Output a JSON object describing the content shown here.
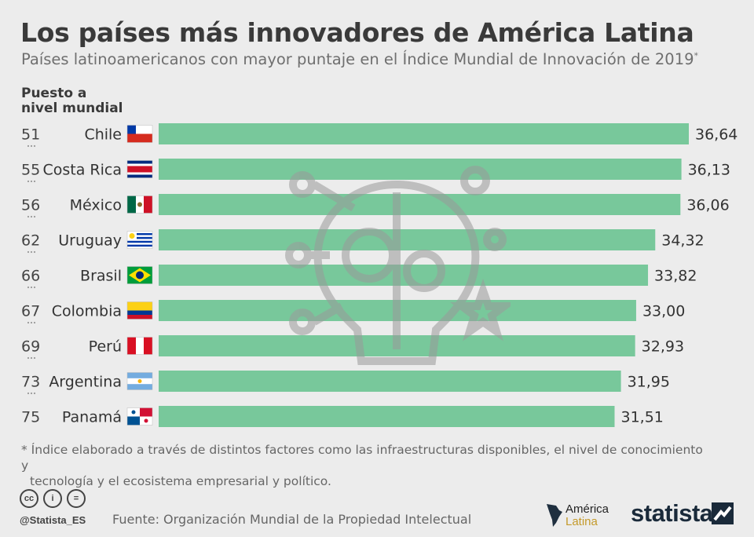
{
  "header": {
    "title": "Los países más innovadores de América Latina",
    "subtitle": "Países latinoamericanos con mayor puntaje en el Índice Mundial de Innovación de 2019",
    "subtitle_mark": "*",
    "rank_header_line1": "Puesto a",
    "rank_header_line2": "nivel mundial"
  },
  "chart_data": {
    "type": "bar",
    "orientation": "horizontal",
    "categories": [
      "Chile",
      "Costa Rica",
      "México",
      "Uruguay",
      "Brasil",
      "Colombia",
      "Perú",
      "Argentina",
      "Panamá"
    ],
    "ranks": [
      "51",
      "55",
      "56",
      "62",
      "66",
      "67",
      "69",
      "73",
      "75"
    ],
    "values": [
      36.64,
      36.13,
      36.06,
      34.32,
      33.82,
      33.0,
      32.93,
      31.95,
      31.51
    ],
    "value_labels": [
      "36,64",
      "36,13",
      "36,06",
      "34,32",
      "33,82",
      "33,00",
      "32,93",
      "31,95",
      "31,51"
    ],
    "xlim": [
      0,
      36.64
    ],
    "bar_color": "#78c89b",
    "grid": false
  },
  "footer": {
    "footnote_line1": "* Índice elaborado a través de distintos factores como las infraestructuras disponibles, el nivel de conocimiento y",
    "footnote_line2": "tecnología y el ecosistema empresarial y político.",
    "license_icons": [
      "cc-icon",
      "by-icon",
      "nd-icon"
    ],
    "license_glyphs": [
      "cc",
      "i",
      "="
    ],
    "handle": "@Statista_ES",
    "source": "Fuente: Organización Mundial de la Propiedad Intelectual",
    "partner_line1": "América",
    "partner_line2": "Latina",
    "brand": "statista",
    "accent_color": "#c49a2b"
  }
}
